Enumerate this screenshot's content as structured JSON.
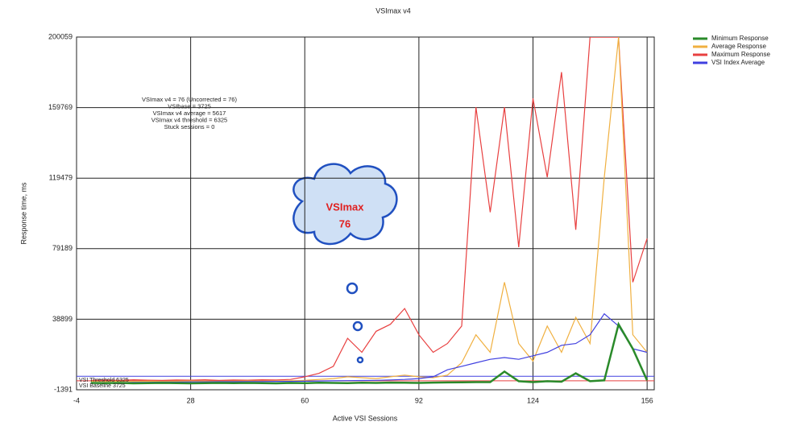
{
  "chart_data": {
    "type": "line",
    "title": "VSImax v4",
    "x_label": "Active VSI Sessions",
    "y_label": "Response time, ms",
    "x": [
      0,
      4,
      8,
      12,
      16,
      20,
      24,
      28,
      32,
      36,
      40,
      44,
      48,
      52,
      56,
      60,
      64,
      68,
      72,
      76,
      80,
      84,
      88,
      92,
      96,
      100,
      104,
      108,
      112,
      116,
      120,
      124,
      128,
      132,
      136,
      140,
      144,
      148,
      152,
      156
    ],
    "series": [
      {
        "name": "Minimum Response",
        "color": "#2a8a2a",
        "values": [
          2500,
          2400,
          2500,
          2300,
          2400,
          2500,
          2400,
          2300,
          2400,
          2500,
          2400,
          2500,
          2400,
          2300,
          2500,
          2400,
          2600,
          2500,
          2400,
          2600,
          2500,
          2700,
          2600,
          2500,
          2700,
          2800,
          2900,
          3000,
          3000,
          9000,
          3500,
          3000,
          3500,
          3200,
          8000,
          3500,
          4000,
          36000,
          22000,
          4000
        ]
      },
      {
        "name": "Average Response",
        "color": "#f0b040",
        "values": [
          3500,
          3400,
          3500,
          3400,
          3500,
          3400,
          3500,
          3600,
          3500,
          3400,
          3500,
          3600,
          3500,
          3600,
          3700,
          4000,
          4500,
          5000,
          6000,
          5500,
          5000,
          6000,
          7000,
          6000,
          5500,
          7000,
          14000,
          30000,
          20000,
          60000,
          25000,
          15000,
          35000,
          20000,
          40000,
          25000,
          120000,
          200000,
          30000,
          20000
        ]
      },
      {
        "name": "Maximum Response",
        "color": "#e84040",
        "values": [
          4000,
          4200,
          4000,
          4300,
          4100,
          4000,
          4200,
          4100,
          4300,
          4000,
          4200,
          4100,
          4300,
          4200,
          4500,
          6000,
          8000,
          12000,
          28000,
          20000,
          32000,
          36000,
          45000,
          30000,
          20000,
          25000,
          35000,
          160000,
          100000,
          160000,
          80000,
          165000,
          120000,
          180000,
          90000,
          200000,
          200000,
          200000,
          60000,
          85000
        ]
      },
      {
        "name": "VSI Index Average",
        "color": "#4040e0",
        "values": [
          2500,
          2600,
          2700,
          2800,
          2900,
          3000,
          3000,
          3100,
          3100,
          3200,
          3200,
          3300,
          3300,
          3400,
          3400,
          3500,
          3600,
          3700,
          3800,
          3900,
          4000,
          4200,
          4500,
          5000,
          6000,
          10000,
          12000,
          14000,
          16000,
          17000,
          16000,
          18000,
          20000,
          24000,
          25000,
          30000,
          42000,
          35000,
          22000,
          20000
        ]
      }
    ],
    "xlim": [
      -4,
      158
    ],
    "xticks": [
      -4,
      28,
      60,
      92,
      124,
      156
    ],
    "ylim": [
      -1391,
      200059
    ],
    "yticks": [
      -1391,
      38899,
      79189,
      119479,
      159769,
      200059
    ],
    "grid": true,
    "legend": "right",
    "annotations": [
      "VSImax v4 = 76 (Uncorrected = 76)",
      "VSIbase = 3725",
      "VSImax v4 average = 5617",
      "VSImax v4 threshold = 6325",
      "Stuck sessions = 0"
    ],
    "callout": {
      "title": "VSImax",
      "value": "76"
    },
    "reference_lines": [
      {
        "label": "VSI Threshold 6325",
        "value": 6325,
        "color": "#4040e0"
      },
      {
        "label": "VSI Baseline 3725",
        "value": 3725,
        "color": "#e84040"
      }
    ]
  }
}
